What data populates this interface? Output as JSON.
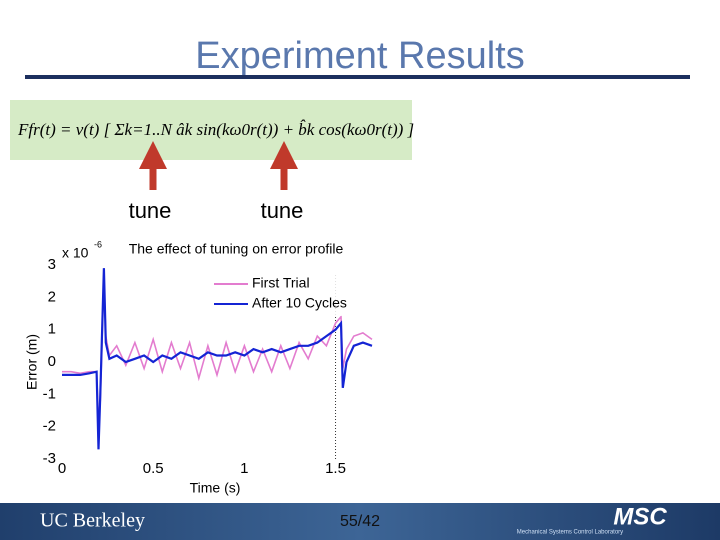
{
  "slide": {
    "title": "Experiment Results",
    "equation": "Ffr(t) = v(t) [ Σk=1..N âk sin(kω0r(t)) + b̂k cos(kω0r(t)) ]",
    "annotations": [
      "tune",
      "tune"
    ]
  },
  "footer": {
    "org": "UC Berkeley",
    "page": "55/42",
    "lab": "MSC",
    "lab_full": "Mechanical Systems Control Laboratory"
  },
  "chart_data": {
    "type": "line",
    "title": "The effect of tuning on error profile",
    "x_label": "Time (s)",
    "y_label": "Error (m)",
    "y_multiplier": "x 10",
    "y_multiplier_exponent": "-6",
    "x": [
      0,
      0.05,
      0.1,
      0.15,
      0.19,
      0.2,
      0.21,
      0.23,
      0.24,
      0.26,
      0.3,
      0.35,
      0.4,
      0.45,
      0.5,
      0.55,
      0.6,
      0.65,
      0.7,
      0.75,
      0.8,
      0.85,
      0.9,
      0.95,
      1.0,
      1.05,
      1.1,
      1.15,
      1.2,
      1.25,
      1.3,
      1.35,
      1.4,
      1.45,
      1.5,
      1.53,
      1.54,
      1.56,
      1.6,
      1.65,
      1.7
    ],
    "series": [
      {
        "name": "First Trial",
        "color": "#e37ccf",
        "values": [
          -0.3,
          -0.3,
          -0.35,
          -0.3,
          -0.3,
          -1.8,
          -1.2,
          2.6,
          0.8,
          0.2,
          0.5,
          -0.1,
          0.6,
          -0.2,
          0.7,
          -0.3,
          0.6,
          -0.2,
          0.6,
          -0.5,
          0.5,
          -0.4,
          0.6,
          -0.3,
          0.5,
          -0.3,
          0.4,
          -0.3,
          0.5,
          -0.2,
          0.6,
          0.1,
          0.8,
          0.5,
          1.2,
          1.4,
          -0.2,
          0.4,
          0.8,
          0.9,
          0.7
        ]
      },
      {
        "name": "After 10 Cycles",
        "color": "#1424d4",
        "values": [
          -0.4,
          -0.4,
          -0.4,
          -0.35,
          -0.3,
          -2.7,
          -1.0,
          2.9,
          0.6,
          0.1,
          0.2,
          0.0,
          0.1,
          0.2,
          0.0,
          0.2,
          0.1,
          0.3,
          0.2,
          0.1,
          0.3,
          0.2,
          0.2,
          0.3,
          0.2,
          0.4,
          0.3,
          0.4,
          0.3,
          0.4,
          0.5,
          0.5,
          0.6,
          0.8,
          1.0,
          1.2,
          -0.8,
          0.0,
          0.5,
          0.6,
          0.5
        ]
      }
    ],
    "xlim": [
      0,
      1.7
    ],
    "ylim": [
      -3,
      3
    ],
    "xticks": [
      0,
      0.5,
      1,
      1.5
    ],
    "yticks": [
      -3,
      -2,
      -1,
      0,
      1,
      2,
      3
    ],
    "vline_x": 1.5,
    "grid": false,
    "legend": "upper right"
  }
}
